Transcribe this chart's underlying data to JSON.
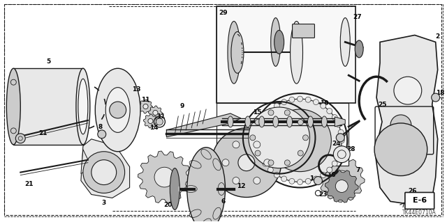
{
  "background_color": "#ffffff",
  "border_color": "#444444",
  "diagram_code": "TK44E0710A",
  "ref_code": "E-6",
  "line_color": "#1a1a1a",
  "gray_light": "#e8e8e8",
  "gray_med": "#cccccc",
  "gray_dark": "#999999",
  "font_size_label": 6.5,
  "fig_w": 6.4,
  "fig_h": 3.19,
  "dpi": 100
}
